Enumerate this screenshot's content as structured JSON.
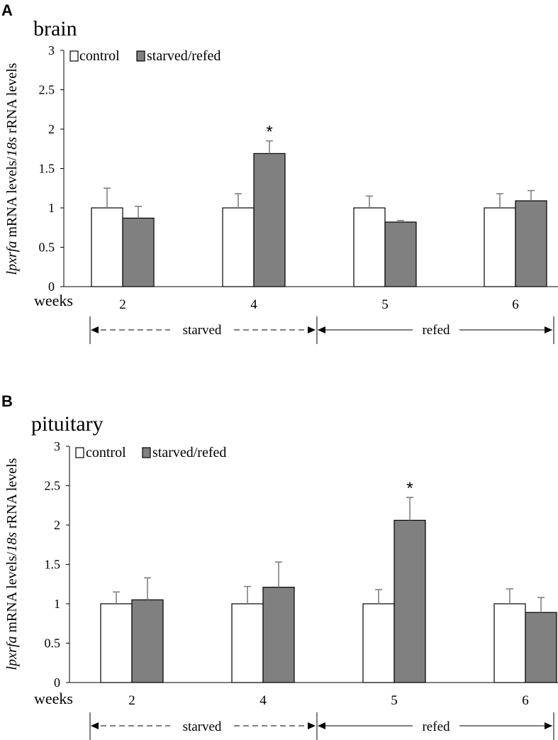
{
  "figure": {
    "weeks_label": "weeks",
    "ylabel_italic": "lpxrfa",
    "ylabel_mid": " mRNA levels/",
    "ylabel_italic2": "18s",
    "ylabel_end": " rRNA levels",
    "phases": {
      "starved": "starved",
      "refed": "refed"
    },
    "colors": {
      "control": "#ffffff",
      "treated": "#808080",
      "axis": "#000000",
      "error": "#808080"
    }
  },
  "chart_data": [
    {
      "panel": "A",
      "type": "bar",
      "title": "brain",
      "xlabel": "weeks",
      "ylabel": "lpxrfa mRNA levels/18s rRNA levels",
      "ylim": [
        0,
        3
      ],
      "yticks": [
        "0",
        "0.5",
        "1",
        "1.5",
        "2",
        "2.5",
        "3"
      ],
      "categories": [
        "2",
        "4",
        "5",
        "6"
      ],
      "series": [
        {
          "name": "control",
          "values": [
            1.0,
            1.0,
            1.0,
            1.0
          ],
          "errors": [
            0.25,
            0.18,
            0.15,
            0.18
          ]
        },
        {
          "name": "starved/refed",
          "values": [
            0.87,
            1.69,
            0.82,
            1.09
          ],
          "errors": [
            0.15,
            0.16,
            0.02,
            0.13
          ]
        }
      ],
      "significance": [
        {
          "category": "4",
          "label": "*"
        }
      ],
      "legend": "top-left"
    },
    {
      "panel": "B",
      "type": "bar",
      "title": "pituitary",
      "xlabel": "weeks",
      "ylabel": "lpxrfa mRNA levels/18s rRNA levels",
      "ylim": [
        0,
        3
      ],
      "yticks": [
        "0",
        "0.5",
        "1",
        "1.5",
        "2",
        "2.5",
        "3"
      ],
      "categories": [
        "2",
        "4",
        "5",
        "6"
      ],
      "series": [
        {
          "name": "control",
          "values": [
            1.0,
            1.0,
            1.0,
            1.0
          ],
          "errors": [
            0.15,
            0.22,
            0.18,
            0.19
          ]
        },
        {
          "name": "starved/refed",
          "values": [
            1.05,
            1.21,
            2.06,
            0.89
          ],
          "errors": [
            0.28,
            0.32,
            0.29,
            0.19
          ]
        }
      ],
      "significance": [
        {
          "category": "5",
          "label": "*"
        }
      ],
      "legend": "top-left"
    }
  ]
}
